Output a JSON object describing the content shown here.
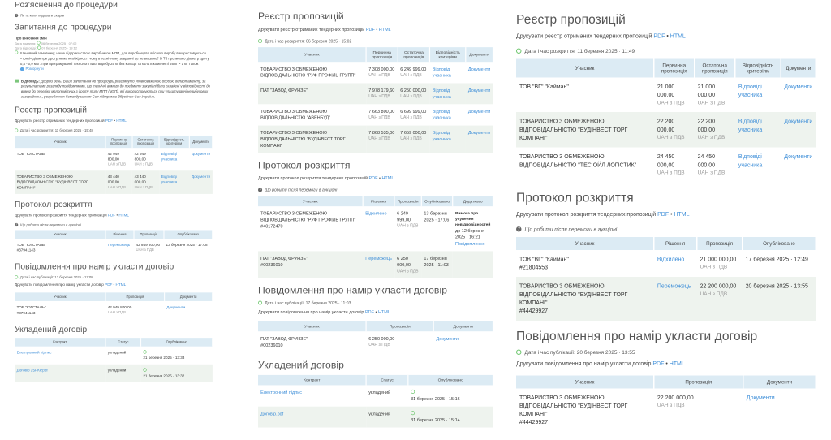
{
  "panels": [
    {
      "sections": [
        {
          "type": "h",
          "text": "Роз'яснення до процедури",
          "first": true
        },
        {
          "type": "info",
          "icon": "question-icon",
          "text": "Як та коли подавати скарги"
        },
        {
          "type": "h",
          "text": "Запитання до процедури"
        },
        {
          "type": "question",
          "title": "Про внесення змін",
          "submitted_label": "Дата подання:",
          "submitted": "06 березня 2025 · 07:02",
          "answered_label": "Дата відповіді:",
          "answered": "07 березня 2025 · 19:12",
          "text": "Шановний замовнику, наше підприємство є виробником МПП, для виробництва якісного виробу використовуються «тонкі» діаметри дроту, нема необхідності чому в технічному завданні це не вказано? В ТЗ прописано діаметр дроту 0,4 - 0,9 мм . При програмуванні технології вага виробу 25 кг без кольця та кола в комплекті 26 кг ~ 1 кг. Також",
          "expand": "Розгорнути",
          "answer_label": "Відповідь:",
          "answer": "Добрий день. Ваше запитання до процедури розглянуто уповноваженою особою департаменту, за результатами розгляду повідомляємо, що технічні вимоги до предмету закупівлі були складені у відповідності до вимог до переліку малопомітних з дроту типу МПП (МЗП), які використовуються при улаштуванні невибухових загороджень, розроблених Командуванням Сил підтримки Збройних Сил України."
        },
        {
          "type": "h",
          "text": "Реєстр пропозицій"
        },
        {
          "type": "print",
          "text": "Друкувати реєстр отриманих тендерних пропозицій",
          "pdf": "PDF",
          "sep": "•",
          "html": "HTML"
        },
        {
          "type": "info",
          "icon": "clock-icon",
          "text": "Дата і час розкриття: 11 березня 2025 · 15:48"
        },
        {
          "type": "table",
          "columns": [
            "Учасник",
            "Первинна пропозиція",
            "Остаточна пропозиція",
            "Відповідність критеріям",
            "Документи"
          ],
          "rows": [
            [
              {
                "v": "ТОВ \"ЮГСТАЛЬ\""
              },
              {
                "v": "42 949 800,00",
                "note": "UAH з ПДВ"
              },
              {
                "v": "42 949 800,00",
                "note": "UAH з ПДВ"
              },
              {
                "link": "Відповіді учасника"
              },
              {
                "link": "Документи"
              }
            ],
            [
              {
                "v": "ТОВАРИСТВО З ОБМЕЖЕНОЮ ВІДПОВІДАЛЬНІСТЮ \"БУДІНВЕСТ ТОРГ КОМПАНІ\""
              },
              {
                "v": "43 440 000,00",
                "note": "UAH з ПДВ"
              },
              {
                "v": "43 440 000,00",
                "note": "UAH з ПДВ"
              },
              {
                "link": "Відповіді учасника"
              },
              {
                "link": "Документи"
              }
            ]
          ]
        },
        {
          "type": "h",
          "text": "Протокол розкриття"
        },
        {
          "type": "print",
          "text": "Друкувати протокол розкриття тендерних пропозицій",
          "pdf": "PDF",
          "sep": "•",
          "html": "HTML"
        },
        {
          "type": "info",
          "icon": "question-icon",
          "italic": true,
          "text": "Що робити після перемоги в аукціоні"
        },
        {
          "type": "table",
          "columns": [
            "Учасник",
            "Рішення",
            "Пропозиція",
            "Опубліковано"
          ],
          "rows": [
            [
              {
                "v": "ТОВ \"ЮГСТАЛЬ\"",
                "id": "#37941143"
              },
              {
                "link": "Переможець"
              },
              {
                "v": "42 949 800,00",
                "note": "UAH з ПДВ"
              },
              {
                "v": "13 березня 2025 · 17:08"
              }
            ]
          ]
        },
        {
          "type": "h",
          "text": "Повідомлення про намір укласти договір"
        },
        {
          "type": "info",
          "icon": "clock-icon",
          "text": "Дата і час публікації: 13 березня 2025 · 17:08"
        },
        {
          "type": "print",
          "text": "Друкувати повідомлення про намір укласти договір",
          "pdf": "PDF",
          "sep": "•",
          "html": "HTML"
        },
        {
          "type": "table",
          "columns": [
            "Учасник",
            "Пропозиція",
            "Документи"
          ],
          "rows": [
            [
              {
                "v": "ТОВ \"ЮГСТАЛЬ\"",
                "id": "#37941143"
              },
              {
                "v": "42 949 800,00",
                "note": "UAH з ПДВ"
              },
              {
                "link": "Документи"
              }
            ]
          ]
        },
        {
          "type": "h",
          "text": "Укладений договір"
        },
        {
          "type": "table",
          "columns": [
            "Контракт",
            "Статус",
            "Опубліковано"
          ],
          "rows": [
            [
              {
                "link": "Електронний підпис"
              },
              {
                "v": "укладений"
              },
              {
                "v": "21 березня 2025 · 13:33",
                "clock": true
              }
            ],
            [
              {
                "link": "Договір 25РКР.pdf"
              },
              {
                "v": "укладений"
              },
              {
                "v": "21 березня 2025 · 13:32",
                "clock": true
              }
            ]
          ]
        }
      ]
    },
    {
      "sections": [
        {
          "type": "h",
          "text": "Реєстр пропозицій"
        },
        {
          "type": "print",
          "text": "Друкувати реєстр отриманих тендерних пропозицій",
          "pdf": "PDF",
          "sep": "•",
          "html": "HTML"
        },
        {
          "type": "info",
          "icon": "clock-icon",
          "text": "Дата і час розкриття: 06 березня 2025 · 15:02"
        },
        {
          "type": "table",
          "columns": [
            "Учасник",
            "Первинна пропозиція",
            "Остаточна пропозиція",
            "Відповідність критеріям",
            "Документи"
          ],
          "rows": [
            [
              {
                "v": "ТОВАРИСТВО З ОБМЕЖЕНОЮ ВІДПОВІДАЛЬНІСТЮ \"РУФ ПРОФІЛЬ ГРУПП\""
              },
              {
                "v": "7 308 000,00",
                "note": "UAH з ПДВ"
              },
              {
                "v": "6 249 999,00",
                "note": "UAH з ПДВ"
              },
              {
                "link": "Відповіді учасника"
              },
              {
                "link": "Документи"
              }
            ],
            [
              {
                "v": "ПАТ \"ЗАВОД ФРУНЗЕ\""
              },
              {
                "v": "7 978 179,60",
                "note": "UAH з ПДВ"
              },
              {
                "v": "6 250 000,00",
                "note": "UAH з ПДВ"
              },
              {
                "link": "Відповіді учасника"
              },
              {
                "link": "Документи"
              }
            ],
            [
              {
                "v": "ТОВАРИСТВО З ОБМЕЖЕНОЮ ВІДПОВІДАЛЬНІСТЮ \"АВЕНБУД\""
              },
              {
                "v": "7 663 800,00",
                "note": "UAH з ПДВ"
              },
              {
                "v": "6 699 999,00",
                "note": "UAH з ПДВ"
              },
              {
                "link": "Відповіді учасника"
              },
              {
                "link": "Документи"
              }
            ],
            [
              {
                "v": "ТОВАРИСТВО З ОБМЕЖЕНОЮ ВІДПОВІДАЛЬНІСТЮ \"БУДІНВЕСТ ТОРГ КОМПАНІ\""
              },
              {
                "v": "7 868 535,00",
                "note": "UAH з ПДВ"
              },
              {
                "v": "7 659 000,00",
                "note": "UAH з ПДВ"
              },
              {
                "link": "Відповіді учасника"
              },
              {
                "link": "Документи"
              }
            ]
          ]
        },
        {
          "type": "h",
          "text": "Протокол розкриття"
        },
        {
          "type": "print",
          "text": "Друкувати протокол розкриття тендерних пропозицій",
          "pdf": "PDF",
          "sep": "•",
          "html": "HTML"
        },
        {
          "type": "info",
          "icon": "question-icon",
          "italic": true,
          "text": "Що робити після перемоги в аукціоні"
        },
        {
          "type": "table",
          "columns": [
            "Учасник",
            "Рішення",
            "Пропозиція",
            "Опубліковано",
            "Додатково"
          ],
          "rows": [
            [
              {
                "v": "ТОВАРИСТВО З ОБМЕЖЕНОЮ ВІДПОВІДАЛЬНІСТЮ \"РУФ ПРОФІЛЬ ГРУПП\"",
                "id": "#40172470"
              },
              {
                "link": "Відхилено"
              },
              {
                "v": "6 249 999,00",
                "note": "UAH з ПДВ"
              },
              {
                "v": "13 березня 2025 · 17:06"
              },
              {
                "bold": "Вимога про усунення невідповідностей",
                "v": "до 12 березня 2025 · 16:21",
                "link": "Повідомлення"
              }
            ],
            [
              {
                "v": "ПАТ \"ЗАВОД ФРУНЗЕ\"",
                "id": "#00236010"
              },
              {
                "link": "Переможець"
              },
              {
                "v": "6 250 000,00",
                "note": "UAH з ПДВ"
              },
              {
                "v": "17 березня 2025 · 11:03"
              },
              {
                "v": ""
              }
            ]
          ]
        },
        {
          "type": "h",
          "text": "Повідомлення про намір укласти договір"
        },
        {
          "type": "info",
          "icon": "clock-icon",
          "text": "Дата і час публікації: 17 березня 2025 · 11:03"
        },
        {
          "type": "print",
          "text": "Друкувати повідомлення про намір укласти договір",
          "pdf": "PDF",
          "sep": "•",
          "html": "HTML"
        },
        {
          "type": "table",
          "columns": [
            "Учасник",
            "Пропозиція",
            "Документи"
          ],
          "rows": [
            [
              {
                "v": "ПАТ \"ЗАВОД ФРУНЗЕ\"",
                "id": "#00236010"
              },
              {
                "v": "6 250 000,00",
                "note": "UAH з ПДВ"
              },
              {
                "link": "Документи"
              }
            ]
          ]
        },
        {
          "type": "h",
          "text": "Укладений договір"
        },
        {
          "type": "table",
          "columns": [
            "Контракт",
            "Статус",
            "Опубліковано"
          ],
          "rows": [
            [
              {
                "link": "Електронний підпис"
              },
              {
                "v": "укладений"
              },
              {
                "v": "31 березня 2025 · 15:16",
                "clock": true
              }
            ],
            [
              {
                "link": "Договір.pdf"
              },
              {
                "v": "укладений"
              },
              {
                "v": "31 березня 2025 · 15:14",
                "clock": true
              }
            ]
          ]
        }
      ]
    },
    {
      "sections": [
        {
          "type": "h",
          "text": "Реєстр пропозицій"
        },
        {
          "type": "print",
          "text": "Друкувати реєстр отриманих тендерних пропозицій",
          "pdf": "PDF",
          "sep": "•",
          "html": "HTML"
        },
        {
          "type": "info",
          "icon": "clock-icon",
          "text": "Дата і час розкриття: 11 березня 2025 · 11:49"
        },
        {
          "type": "table",
          "columns": [
            "Учасник",
            "Первинна пропозиція",
            "Остаточна пропозиція",
            "Відповідність критеріям",
            "Документи"
          ],
          "rows": [
            [
              {
                "v": "ТОВ \"ВГ\" \"Кайман\""
              },
              {
                "v": "21 000 000,00",
                "note": "UAH з ПДВ"
              },
              {
                "v": "21 000 000,00",
                "note": "UAH з ПДВ"
              },
              {
                "link": "Відповіді учасника"
              },
              {
                "link": "Документи"
              }
            ],
            [
              {
                "v": "ТОВАРИСТВО З ОБМЕЖЕНОЮ ВІДПОВІДАЛЬНІСТЮ \"БУДІНВЕСТ ТОРГ КОМПАНІ\""
              },
              {
                "v": "22 200 000,00",
                "note": "UAH з ПДВ"
              },
              {
                "v": "22 200 000,00",
                "note": "UAH з ПДВ"
              },
              {
                "link": "Відповіді учасника"
              },
              {
                "link": "Документи"
              }
            ],
            [
              {
                "v": "ТОВАРИСТВО З ОБМЕЖЕНОЮ ВІДПОВІДАЛЬНІСТЮ \"ТЕС ОЙЛ ЛОГІСТИК\""
              },
              {
                "v": "24 450 000,00",
                "note": "UAH з ПДВ"
              },
              {
                "v": "24 450 000,00",
                "note": "UAH з ПДВ"
              },
              {
                "link": "Відповіді учасника"
              },
              {
                "link": "Документи"
              }
            ]
          ]
        },
        {
          "type": "h",
          "text": "Протокол розкриття"
        },
        {
          "type": "print",
          "text": "Друкувати протокол розкриття тендерних пропозицій",
          "pdf": "PDF",
          "sep": "•",
          "html": "HTML"
        },
        {
          "type": "info",
          "icon": "question-icon",
          "italic": true,
          "text": "Що робити після перемоги в аукціоні"
        },
        {
          "type": "table",
          "columns": [
            "Учасник",
            "Рішення",
            "Пропозиція",
            "Опубліковано"
          ],
          "rows": [
            [
              {
                "v": "ТОВ \"ВГ\" \"Кайман\"",
                "id": "#21804553"
              },
              {
                "link": "Відхилено"
              },
              {
                "v": "21 000 000,00",
                "note": "UAH з ПДВ"
              },
              {
                "v": "17 березня 2025 · 12:49"
              }
            ],
            [
              {
                "v": "ТОВАРИСТВО З ОБМЕЖЕНОЮ ВІДПОВІДАЛЬНІСТЮ \"БУДІНВЕСТ ТОРГ КОМПАНІ\"",
                "id": "#44429927"
              },
              {
                "link": "Переможець"
              },
              {
                "v": "22 200 000,00",
                "note": "UAH з ПДВ"
              },
              {
                "v": "20 березня 2025 · 13:55"
              }
            ]
          ]
        },
        {
          "type": "h",
          "text": "Повідомлення про намір укласти договір"
        },
        {
          "type": "info",
          "icon": "clock-icon",
          "text": "Дата і час публікації: 20 березня 2025 · 13:55"
        },
        {
          "type": "print",
          "text": "Друкувати повідомлення про намір укласти договір",
          "pdf": "PDF",
          "sep": "•",
          "html": "HTML"
        },
        {
          "type": "table",
          "columns": [
            "Учасник",
            "Пропозиція",
            "Документи"
          ],
          "rows": [
            [
              {
                "v": "ТОВАРИСТВО З ОБМЕЖЕНОЮ ВІДПОВІДАЛЬНІСТЮ \"БУДІНВЕСТ ТОРГ КОМПАНІ\"",
                "id": "#44429927"
              },
              {
                "v": "22 200 000,00",
                "note": "UAH з ПДВ"
              },
              {
                "link": "Документи"
              }
            ]
          ]
        }
      ]
    }
  ]
}
